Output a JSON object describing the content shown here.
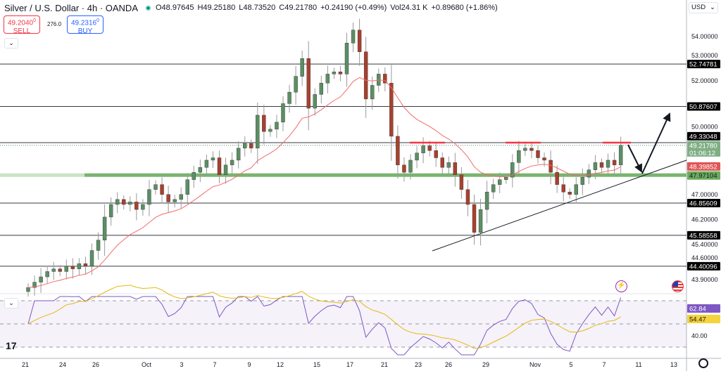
{
  "header": {
    "title": "Silver / U.S. Dollar · 4h · OANDA",
    "open": "O48.97645",
    "high": "H49.25180",
    "low": "L48.73520",
    "close": "C49.21780",
    "change": "+0.24190 (+0.49%)",
    "volume": "Vol24.31 K",
    "vol_change": "+0.89680 (+1.86%)"
  },
  "trade": {
    "sell_price": "49.2040",
    "sell_sup": "0",
    "sell_label": "SELL",
    "spread": "276.0",
    "buy_price": "49.2316",
    "buy_sup": "0",
    "buy_label": "BUY"
  },
  "currency": "USD",
  "colors": {
    "up": "#5a8f63",
    "down": "#a8402e",
    "ma": "#f26b6b",
    "support_band": "#6aac5e",
    "rsi": "#7e57c2",
    "rsi_ma": "#e6b80f",
    "level": "#131722"
  },
  "chart_data": {
    "type": "candlestick",
    "y_scale": "log",
    "closes": [
      43.6,
      43.8,
      44.0,
      44.2,
      44.3,
      44.2,
      44.4,
      44.3,
      44.5,
      44.4,
      45.0,
      45.4,
      46.3,
      46.8,
      47.0,
      46.8,
      46.9,
      46.6,
      46.8,
      47.4,
      47.6,
      47.2,
      46.9,
      47.0,
      47.2,
      47.8,
      48.1,
      48.3,
      48.6,
      48.7,
      48.0,
      48.4,
      48.6,
      49.1,
      49.3,
      49.1,
      50.5,
      49.8,
      49.9,
      50.2,
      51.0,
      51.5,
      52.2,
      53.0,
      50.8,
      51.4,
      51.9,
      52.3,
      52.4,
      52.3,
      53.7,
      54.3,
      53.3,
      51.2,
      51.8,
      52.3,
      51.9,
      49.6,
      48.4,
      48.1,
      48.6,
      48.9,
      49.2,
      49.0,
      48.7,
      48.3,
      48.5,
      48.0,
      47.4,
      46.8,
      45.7,
      46.6,
      47.3,
      47.6,
      47.8,
      47.9,
      48.5,
      49.0,
      49.1,
      49.0,
      48.7,
      48.6,
      48.1,
      47.6,
      47.3,
      47.2,
      47.6,
      47.9,
      48.2,
      48.5,
      48.3,
      48.6,
      48.4,
      49.2178
    ],
    "price_ticks": [
      "54.00000",
      "53.00000",
      "52.00000",
      "50.00000",
      "47.00000",
      "46.20000",
      "45.40000",
      "44.60000",
      "43.90000"
    ],
    "price_tick_values": [
      54,
      53,
      52,
      50,
      47,
      46.2,
      45.4,
      44.6,
      43.9
    ],
    "x_ticks": [
      "21",
      "24",
      "26",
      "Oct",
      "3",
      "7",
      "9",
      "12",
      "15",
      "17",
      "21",
      "23",
      "26",
      "29",
      "Nov",
      "5",
      "7",
      "11",
      "13"
    ],
    "levels": [
      {
        "label": "52.74781",
        "value": 52.74781
      },
      {
        "label": "50.87607",
        "value": 50.87607
      },
      {
        "label": "49.33048",
        "value": 49.33048
      },
      {
        "label": "46.85609",
        "value": 46.85609
      },
      {
        "label": "45.58558",
        "value": 45.58558
      },
      {
        "label": "44.40096",
        "value": 44.40096
      }
    ],
    "support": {
      "label": "47.97104",
      "value": 47.97104
    },
    "ma_value": {
      "label": "48.39852",
      "value": 48.39852
    },
    "last_price": {
      "label": "49.21780",
      "countdown": "01:06:12",
      "value": 49.2178
    },
    "rsi": {
      "value_label": "62.84",
      "ma_label": "54.47",
      "tick": "40.00",
      "bands": [
        70,
        50,
        30
      ]
    }
  }
}
